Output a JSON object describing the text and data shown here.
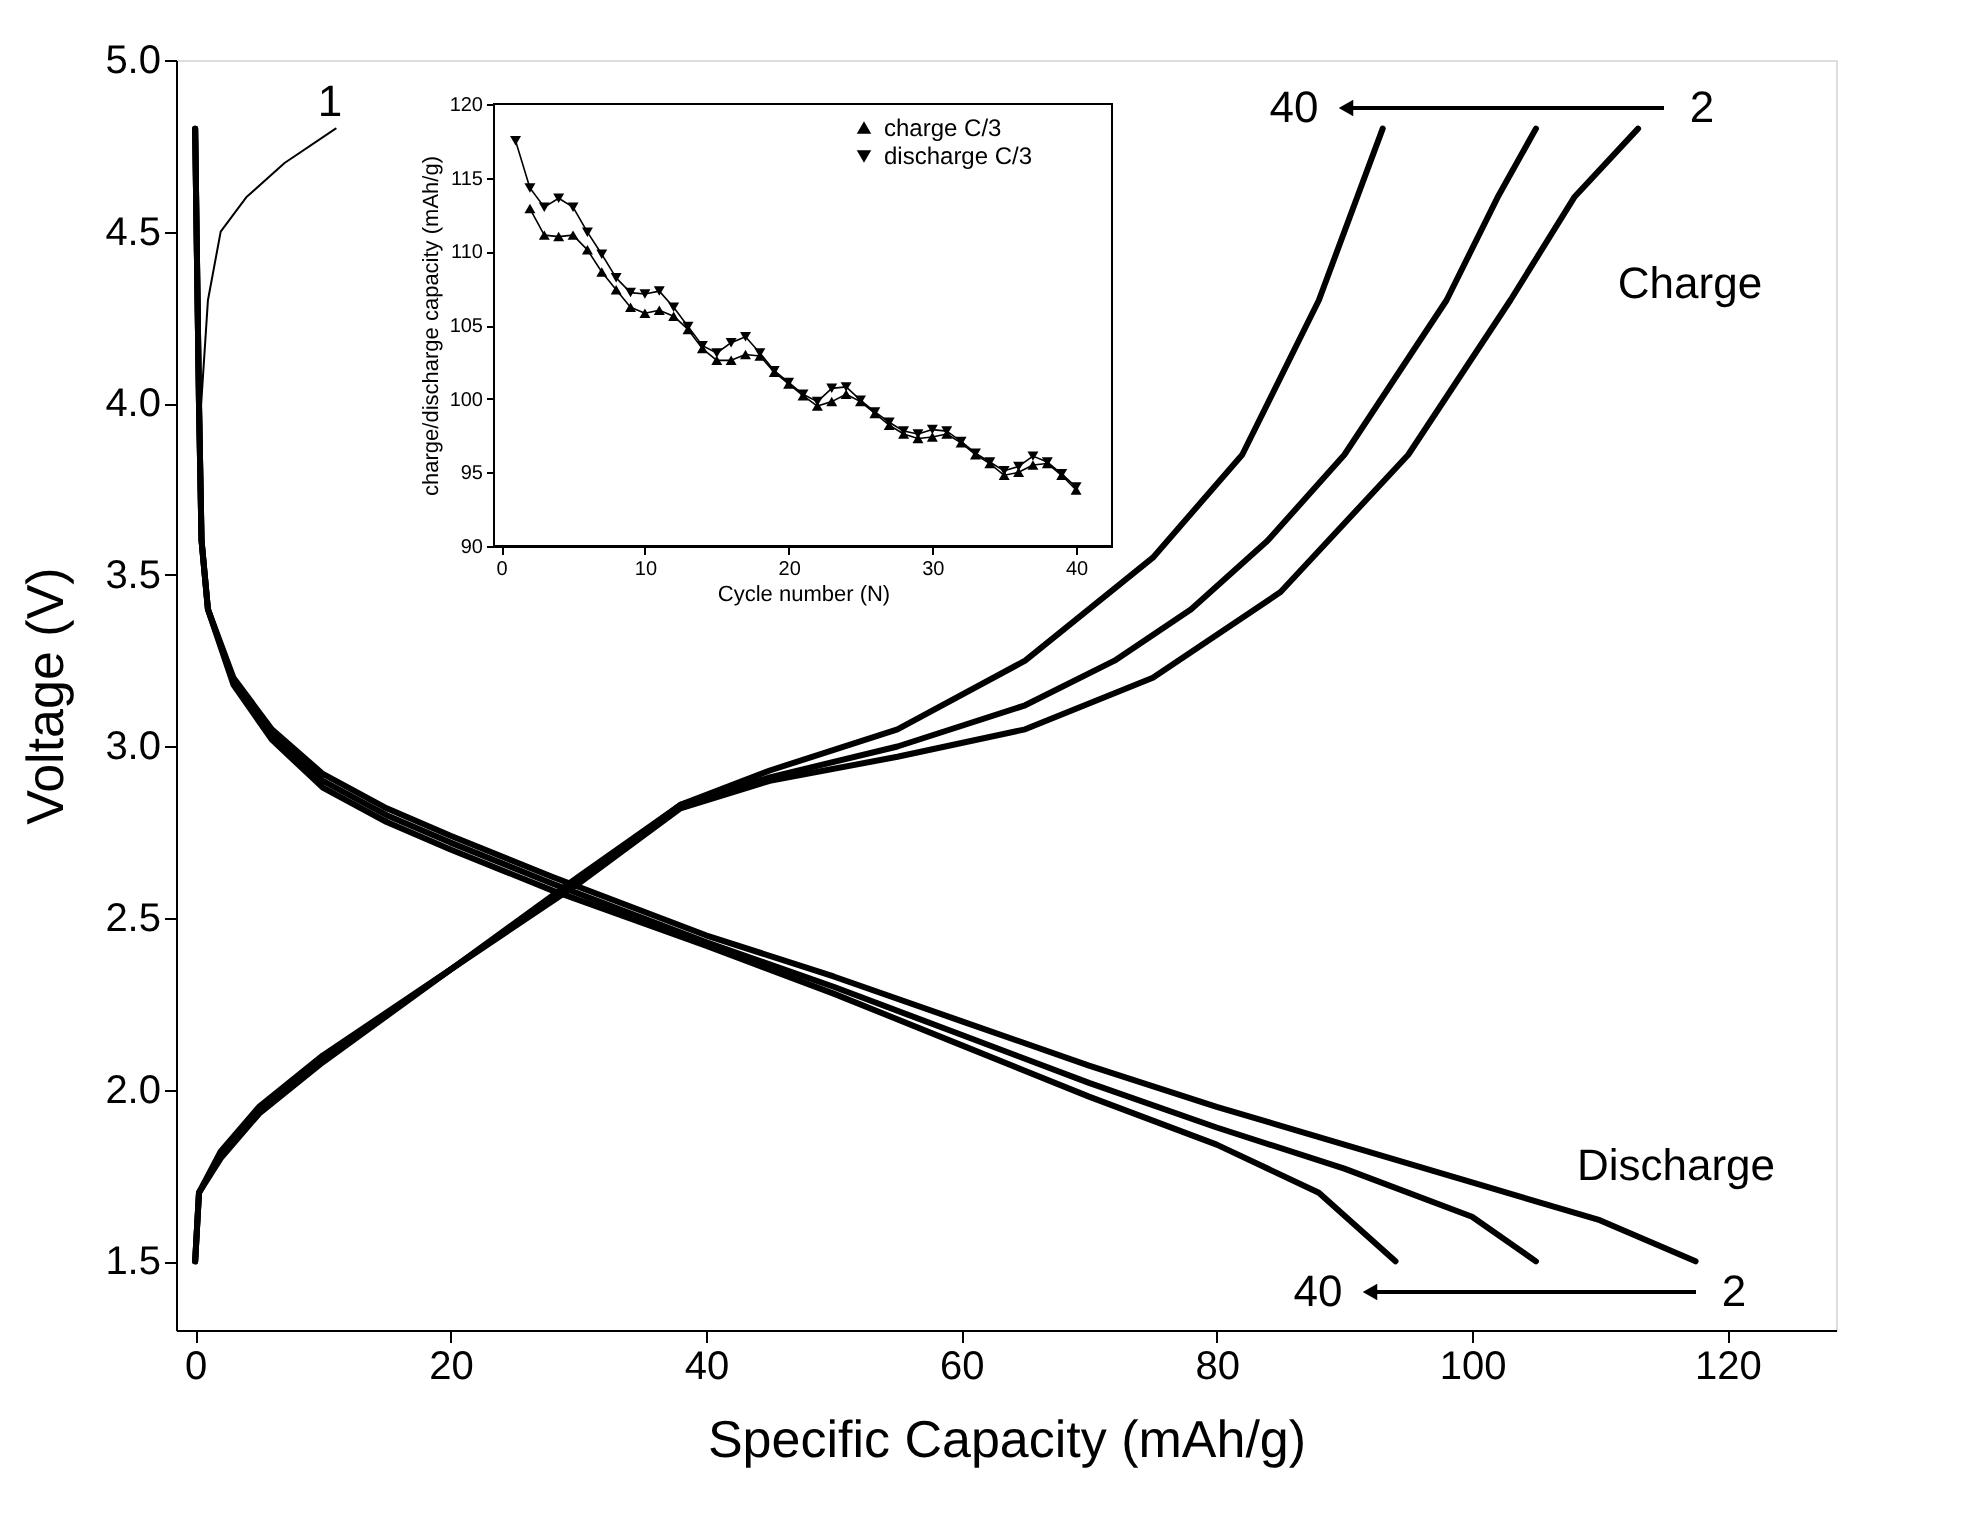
{
  "chart_data": [
    {
      "type": "line",
      "xlabel": "Specific Capacity (mAh/g)",
      "ylabel": "Voltage (V)",
      "xlim": [
        -1.5,
        128.5
      ],
      "ylim": [
        1.3,
        5.0
      ],
      "xticks": [
        0,
        20,
        40,
        60,
        80,
        100,
        120
      ],
      "yticks": [
        {
          "value": 1.5,
          "label": "1.5"
        },
        {
          "value": 2,
          "label": "2.0"
        },
        {
          "value": 2.5,
          "label": "2.5"
        },
        {
          "value": 3,
          "label": "3.0"
        },
        {
          "value": 3.5,
          "label": "3.5"
        },
        {
          "value": 4,
          "label": "4.0"
        },
        {
          "value": 4.5,
          "label": "4.5"
        },
        {
          "value": 5,
          "label": "5.0"
        }
      ],
      "grid": false,
      "series": [
        {
          "color": "#000000",
          "x": [
            0.3,
            1,
            2,
            4,
            7,
            11
          ],
          "values": [
            3.9,
            4.3,
            4.5,
            4.6,
            4.7,
            4.8
          ]
        },
        {
          "color": "#000000",
          "x": [
            0,
            0.3,
            2,
            5,
            10,
            20,
            30,
            38,
            45,
            55,
            65,
            75,
            85,
            95,
            103,
            108,
            113
          ],
          "values": [
            1.5,
            1.7,
            1.82,
            1.95,
            2.1,
            2.35,
            2.6,
            2.82,
            2.9,
            2.97,
            3.05,
            3.2,
            3.45,
            3.85,
            4.3,
            4.6,
            4.8
          ]
        },
        {
          "color": "#000000",
          "x": [
            0,
            0.3,
            2,
            5,
            10,
            20,
            30,
            38,
            45,
            55,
            65,
            72,
            78,
            84,
            90,
            98,
            102,
            105
          ],
          "values": [
            1.5,
            1.7,
            1.81,
            1.94,
            2.09,
            2.35,
            2.61,
            2.83,
            2.91,
            3.0,
            3.12,
            3.25,
            3.4,
            3.6,
            3.85,
            4.3,
            4.6,
            4.8
          ]
        },
        {
          "color": "#000000",
          "x": [
            0,
            0.3,
            2,
            5,
            10,
            20,
            30,
            38,
            45,
            55,
            65,
            75,
            82,
            88,
            91,
            93
          ],
          "values": [
            1.5,
            1.7,
            1.8,
            1.93,
            2.08,
            2.35,
            2.62,
            2.83,
            2.93,
            3.05,
            3.25,
            3.55,
            3.85,
            4.3,
            4.6,
            4.8
          ]
        },
        {
          "color": "#000000",
          "x": [
            0,
            0.3,
            0.5,
            1,
            3,
            6,
            10,
            15,
            20,
            28,
            40,
            50,
            60,
            70,
            80,
            90,
            100,
            110,
            117.5
          ],
          "values": [
            4.8,
            4.0,
            3.6,
            3.4,
            3.2,
            3.05,
            2.92,
            2.82,
            2.74,
            2.62,
            2.45,
            2.33,
            2.2,
            2.07,
            1.95,
            1.84,
            1.73,
            1.62,
            1.5
          ]
        },
        {
          "color": "#000000",
          "x": [
            0,
            0.3,
            0.5,
            1,
            3,
            6,
            10,
            15,
            20,
            28,
            40,
            50,
            60,
            70,
            80,
            90,
            100,
            105
          ],
          "values": [
            4.8,
            4.0,
            3.6,
            3.4,
            3.19,
            3.03,
            2.9,
            2.8,
            2.72,
            2.6,
            2.43,
            2.3,
            2.16,
            2.02,
            1.89,
            1.77,
            1.63,
            1.5
          ]
        },
        {
          "color": "#000000",
          "x": [
            0,
            0.3,
            0.5,
            1,
            3,
            6,
            10,
            15,
            20,
            28,
            40,
            50,
            60,
            70,
            80,
            88,
            94
          ],
          "values": [
            4.8,
            4.0,
            3.6,
            3.4,
            3.18,
            3.02,
            2.88,
            2.78,
            2.7,
            2.58,
            2.42,
            2.28,
            2.13,
            1.98,
            1.84,
            1.7,
            1.5
          ]
        }
      ],
      "annotations": [
        "1",
        "40",
        "2",
        "Charge",
        "Discharge",
        "40",
        "2"
      ]
    },
    {
      "type": "line",
      "xlabel": "Cycle number (N)",
      "ylabel": "charge/discharge capacity (mAh/g)",
      "xlim": [
        -0.5,
        42.5
      ],
      "ylim": [
        90,
        120
      ],
      "xticks": [
        0,
        10,
        20,
        30,
        40
      ],
      "yticks": [
        90,
        95,
        100,
        105,
        110,
        115,
        120
      ],
      "grid": false,
      "legend": "top right",
      "marker": "triangle",
      "series": [
        {
          "name": "charge C/3",
          "color": "#000000",
          "x": [
            2,
            3,
            4,
            5,
            6,
            7,
            8,
            9,
            10,
            11,
            12,
            13,
            14,
            15,
            16,
            17,
            18,
            19,
            20,
            21,
            22,
            23,
            24,
            25,
            26,
            27,
            28,
            29,
            30,
            31,
            32,
            33,
            34,
            35,
            36,
            37,
            38,
            39,
            40
          ],
          "values": [
            112.9,
            111.1,
            111.0,
            111.1,
            110.1,
            108.6,
            107.4,
            106.2,
            105.8,
            106.0,
            105.6,
            104.7,
            103.4,
            102.6,
            102.6,
            103.0,
            102.9,
            101.8,
            101.0,
            100.2,
            99.5,
            99.8,
            100.3,
            99.8,
            99.0,
            98.2,
            97.6,
            97.3,
            97.4,
            97.6,
            97.0,
            96.2,
            95.6,
            94.8,
            95.0,
            95.5,
            95.6,
            94.8,
            93.8
          ]
        },
        {
          "name": "discharge C/3",
          "color": "#000000",
          "x": [
            1,
            2,
            3,
            4,
            5,
            6,
            7,
            8,
            9,
            10,
            11,
            12,
            13,
            14,
            15,
            16,
            17,
            18,
            19,
            20,
            21,
            22,
            23,
            24,
            25,
            26,
            27,
            28,
            29,
            30,
            31,
            32,
            33,
            34,
            35,
            36,
            37,
            38,
            39,
            40
          ],
          "values": [
            117.5,
            114.3,
            113.0,
            113.6,
            113.0,
            111.3,
            109.8,
            108.2,
            107.2,
            107.1,
            107.3,
            106.2,
            104.9,
            103.6,
            103.1,
            103.8,
            104.2,
            103.1,
            101.9,
            101.1,
            100.3,
            99.8,
            100.7,
            100.8,
            99.9,
            99.1,
            98.4,
            97.8,
            97.6,
            97.9,
            97.8,
            97.1,
            96.3,
            95.7,
            95.1,
            95.4,
            96.1,
            95.7,
            94.9,
            94.0
          ]
        }
      ]
    }
  ]
}
